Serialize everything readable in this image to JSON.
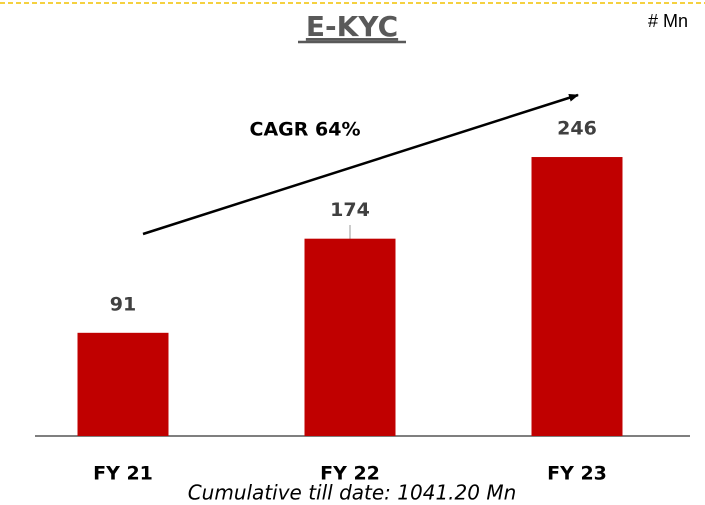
{
  "chart_data": {
    "type": "bar",
    "title": "E-KYC",
    "unit": "# Mn",
    "categories": [
      "FY 21",
      "FY 22",
      "FY 23"
    ],
    "values": [
      91,
      174,
      246
    ],
    "color": "#c00000",
    "annotations": [
      "CAGR 64%",
      "Cumulative till date: 1041.20 Mn"
    ]
  }
}
